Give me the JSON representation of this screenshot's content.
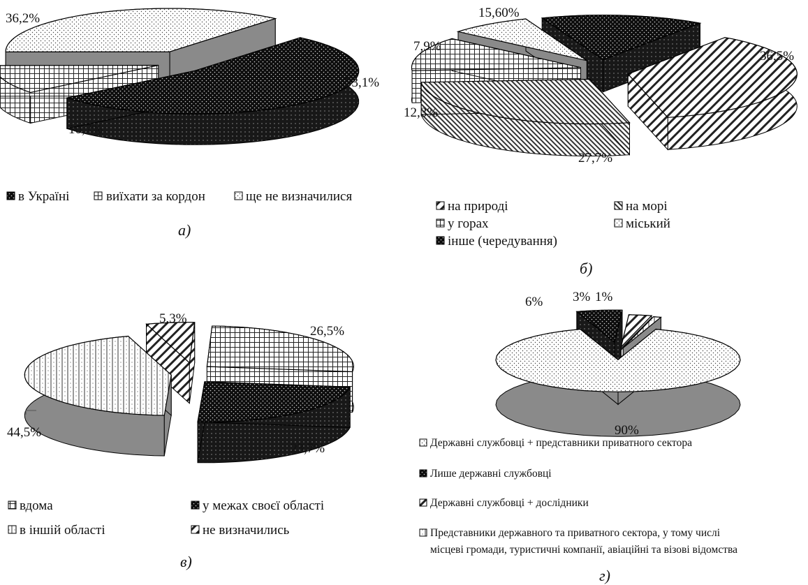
{
  "chart_data": [
    {
      "panel": "а)",
      "type": "pie",
      "categories": [
        "в Україні",
        "виїхати за кордон",
        "ще не визначилися"
      ],
      "values": [
        53.1,
        10.7,
        36.2
      ],
      "value_labels": [
        "53,1%",
        "10,7%",
        "36,2%"
      ],
      "patterns": [
        "dots-dark",
        "grid",
        "dots-light"
      ],
      "style": "3d-exploded",
      "legend_position": "bottom"
    },
    {
      "panel": "б)",
      "type": "pie",
      "categories": [
        "на природі",
        "на морі",
        "у горах",
        "міський",
        "інше (чередування)"
      ],
      "values": [
        36.5,
        27.7,
        12.3,
        7.9,
        15.6
      ],
      "value_labels": [
        "36,5%",
        "27,7%",
        "12,3%",
        "7,9%",
        "15,60%"
      ],
      "patterns": [
        "diag-wide",
        "diag-dense",
        "grid",
        "dots-light",
        "dots-dark"
      ],
      "style": "3d-exploded",
      "legend_position": "bottom"
    },
    {
      "panel": "в)",
      "type": "pie",
      "categories": [
        "вдома",
        "у межах своєї області",
        "в іншій області",
        "не визначились"
      ],
      "values": [
        26.5,
        23.7,
        44.5,
        5.3
      ],
      "value_labels": [
        "26,5%",
        "23,7%",
        "44,5%",
        "5,3%"
      ],
      "patterns": [
        "grid",
        "dots-dark",
        "vlines",
        "diag-wide"
      ],
      "style": "3d-exploded",
      "legend_position": "bottom"
    },
    {
      "panel": "г)",
      "type": "pie",
      "categories": [
        "Державні службовці + представники приватного сектора",
        "Лише державні службовці",
        "Державні службовці + дослідники",
        "Представники державного та приватного сектора, у тому числі місцеві громади, туристичні компанії, авіаційні та візові відомства"
      ],
      "values": [
        90,
        6,
        3,
        1
      ],
      "value_labels": [
        "90%",
        "6%",
        "3%",
        "1%"
      ],
      "patterns": [
        "dots-light",
        "dots-dark",
        "diag-wide",
        "vlines"
      ],
      "style": "3d-exploded",
      "legend_position": "bottom"
    }
  ],
  "legends": {
    "a": [
      "в Україні",
      "виїхати за кордон",
      "ще не визначилися"
    ],
    "b": [
      "на природі",
      "на морі",
      "у горах",
      "міський",
      "інше (чередування)"
    ],
    "c": [
      "вдома",
      "у межах своєї області",
      "в іншій області",
      "не визначились"
    ],
    "d": [
      "Державні службовці + представники приватного сектора",
      "Лише державні службовці",
      "Державні службовці + дослідники",
      "Представники державного та приватного сектора, у тому числі",
      "місцеві громади, туристичні компанії, авіаційні та візові відомства"
    ]
  },
  "captions": {
    "a": "а)",
    "b": "б)",
    "c": "в)",
    "d": "г)"
  }
}
